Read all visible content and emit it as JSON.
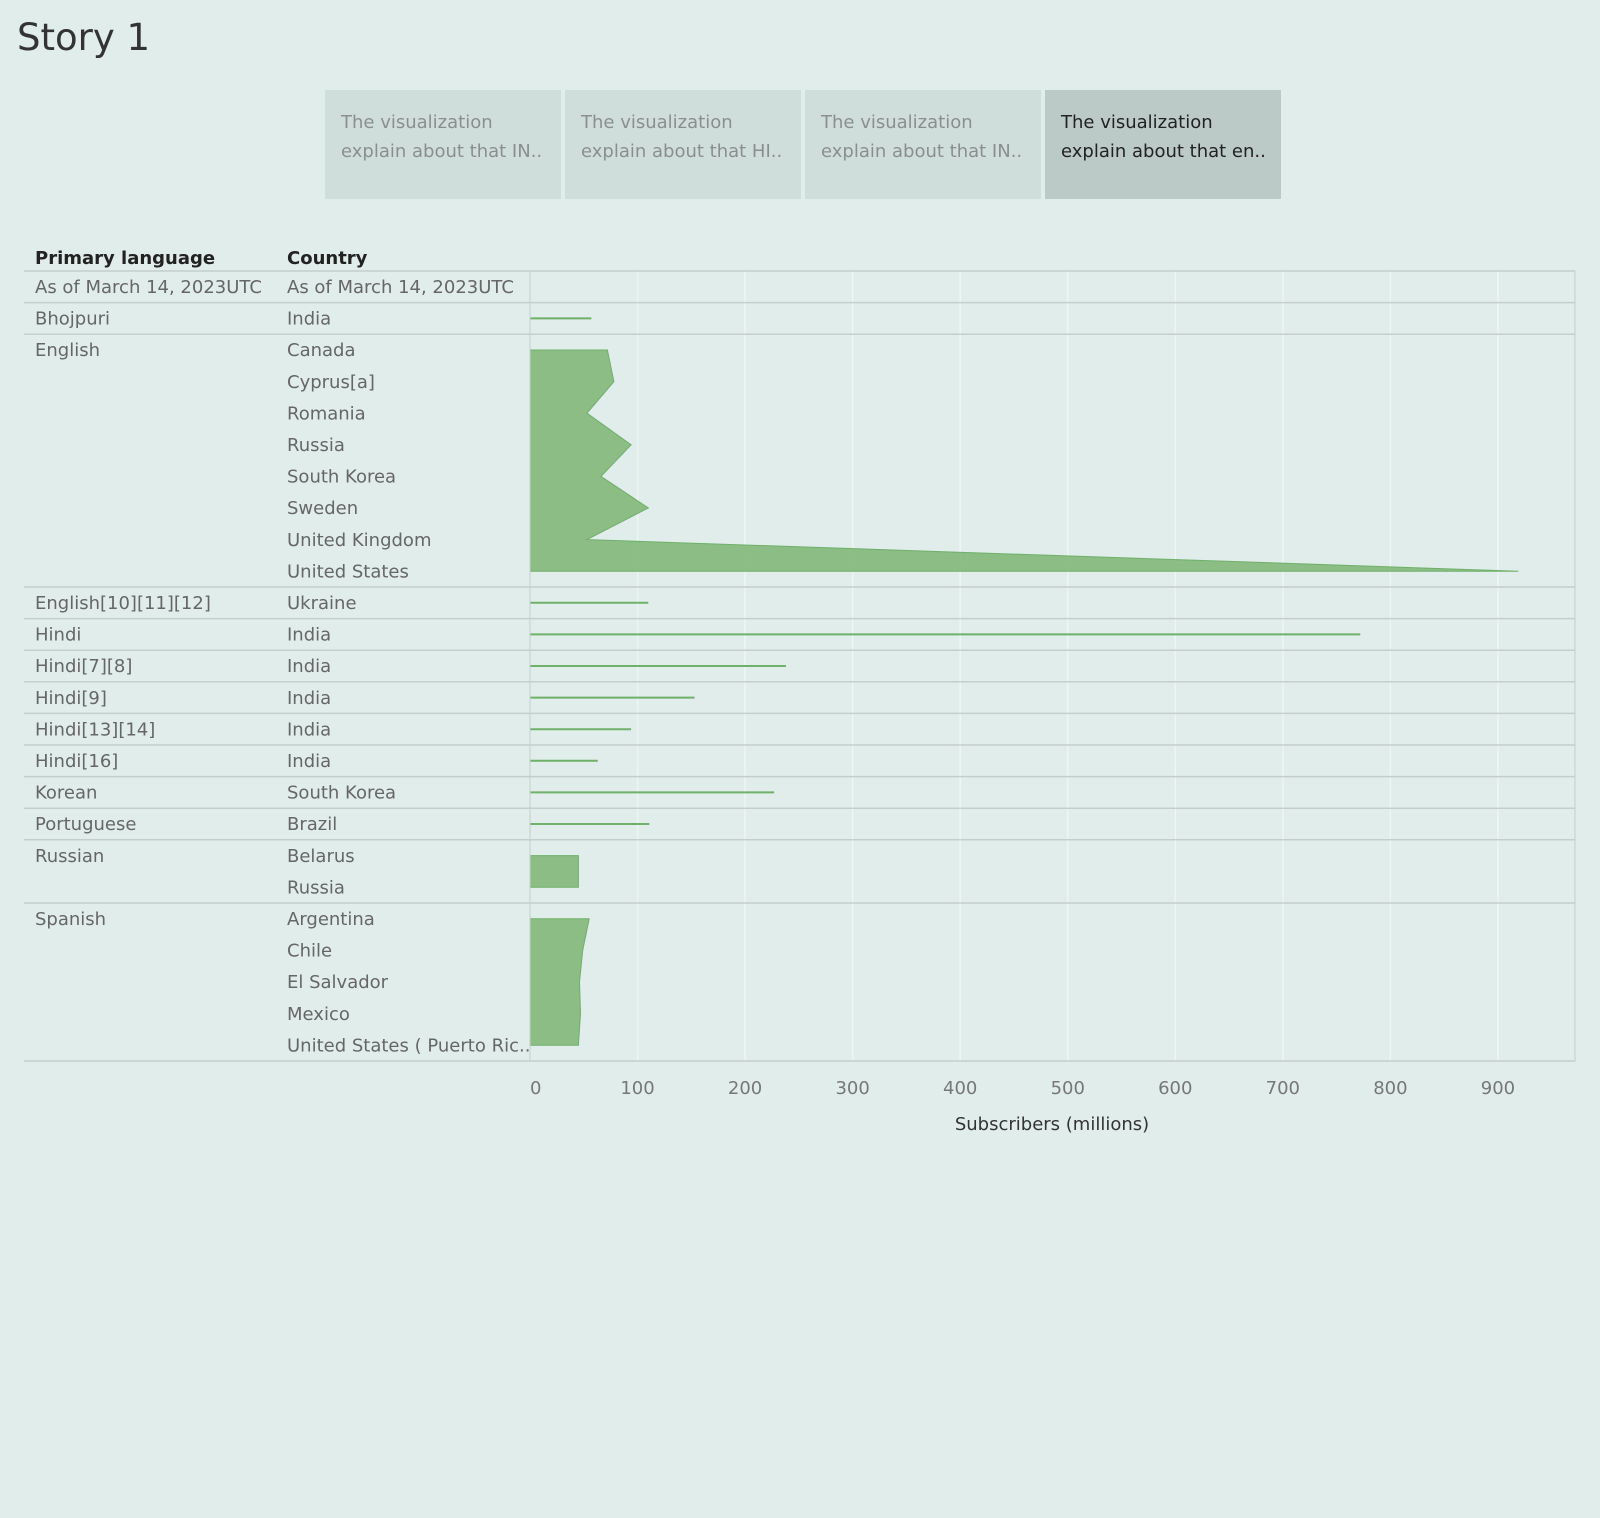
{
  "story": {
    "title": "Story 1",
    "tabs": [
      {
        "line1": "The visualization",
        "line2": "explain about that IN..",
        "active": false
      },
      {
        "line1": "The visualization",
        "line2": "explain about that HI..",
        "active": false
      },
      {
        "line1": "The visualization",
        "line2": "explain about that IN..",
        "active": false
      },
      {
        "line1": "The visualization",
        "line2": "explain about that en..",
        "active": true
      }
    ]
  },
  "table_headers": {
    "language": "Primary language",
    "country": "Country"
  },
  "colors": {
    "mark_fill": "#86bb7e",
    "mark_stroke": "#6fb06a",
    "grid": "#eef6f4",
    "row_line": "#c4cfcc"
  },
  "chart_data": {
    "type": "area",
    "orientation": "horizontal",
    "xlabel": "Subscribers (millions)",
    "x_ticks": [
      0,
      100,
      200,
      300,
      400,
      500,
      600,
      700,
      800,
      900
    ],
    "xlim": [
      0,
      965
    ],
    "grid": true,
    "groups": [
      {
        "language": "As of March 14, 2023UTC",
        "rows": [
          {
            "country": "As of March 14, 2023UTC",
            "value": null
          }
        ]
      },
      {
        "language": "Bhojpuri",
        "rows": [
          {
            "country": "India",
            "value": 57
          }
        ]
      },
      {
        "language": "English",
        "rows": [
          {
            "country": "Canada",
            "value": 72
          },
          {
            "country": "Cyprus[a]",
            "value": 78
          },
          {
            "country": "Romania",
            "value": 53
          },
          {
            "country": "Russia",
            "value": 94
          },
          {
            "country": "South Korea",
            "value": 66
          },
          {
            "country": "Sweden",
            "value": 110
          },
          {
            "country": "United Kingdom",
            "value": 53
          },
          {
            "country": "United States",
            "value": 919
          }
        ]
      },
      {
        "language": "English[10][11][12]",
        "rows": [
          {
            "country": "Ukraine",
            "value": 110
          }
        ]
      },
      {
        "language": "Hindi",
        "rows": [
          {
            "country": "India",
            "value": 772
          }
        ]
      },
      {
        "language": "Hindi[7][8]",
        "rows": [
          {
            "country": "India",
            "value": 238
          }
        ]
      },
      {
        "language": "Hindi[9]",
        "rows": [
          {
            "country": "India",
            "value": 153
          }
        ]
      },
      {
        "language": "Hindi[13][14]",
        "rows": [
          {
            "country": "India",
            "value": 94
          }
        ]
      },
      {
        "language": "Hindi[16]",
        "rows": [
          {
            "country": "India",
            "value": 63
          }
        ]
      },
      {
        "language": "Korean",
        "rows": [
          {
            "country": "South Korea",
            "value": 227
          }
        ]
      },
      {
        "language": "Portuguese",
        "rows": [
          {
            "country": "Brazil",
            "value": 111
          }
        ]
      },
      {
        "language": "Russian",
        "rows": [
          {
            "country": "Belarus",
            "value": 45
          },
          {
            "country": "Russia",
            "value": 45
          }
        ]
      },
      {
        "language": "Spanish",
        "rows": [
          {
            "country": "Argentina",
            "value": 55
          },
          {
            "country": "Chile",
            "value": 49
          },
          {
            "country": "El Salvador",
            "value": 46
          },
          {
            "country": "Mexico",
            "value": 47
          },
          {
            "country": "United States ( Puerto Ric..",
            "value": 45
          }
        ]
      }
    ]
  }
}
